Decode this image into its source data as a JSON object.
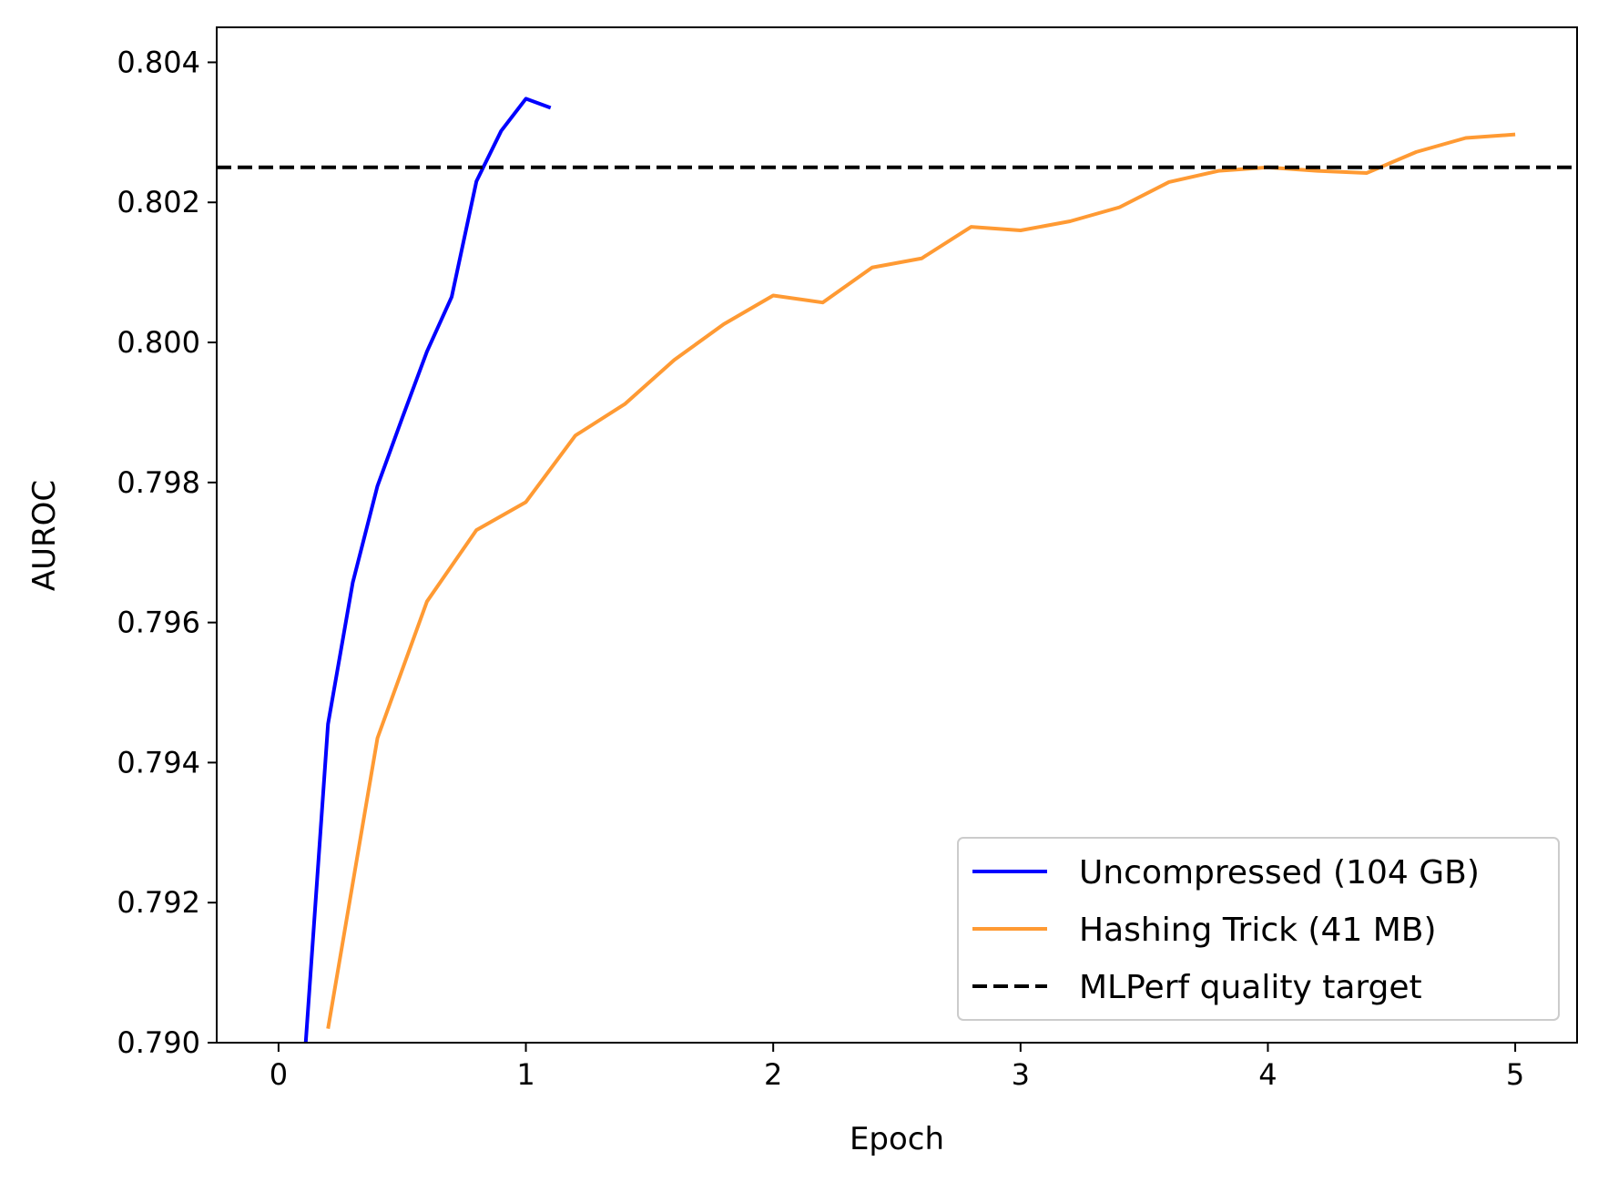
{
  "chart_data": {
    "type": "line",
    "title": "",
    "xlabel": "Epoch",
    "ylabel": "AUROC",
    "xlim": [
      -0.25,
      5.25
    ],
    "ylim": [
      0.79,
      0.8045
    ],
    "xticks": [
      0,
      1,
      2,
      3,
      4,
      5
    ],
    "xtick_labels": [
      "0",
      "1",
      "2",
      "3",
      "4",
      "5"
    ],
    "yticks": [
      0.79,
      0.792,
      0.794,
      0.796,
      0.798,
      0.8,
      0.802,
      0.804
    ],
    "ytick_labels": [
      "0.790",
      "0.792",
      "0.794",
      "0.796",
      "0.798",
      "0.800",
      "0.802",
      "0.804"
    ],
    "grid": false,
    "legend_position": "bottom-right",
    "series": [
      {
        "name": "Uncompressed (104 GB)",
        "color": "#0000ff",
        "style": "solid",
        "x": [
          0.1,
          0.2,
          0.3,
          0.4,
          0.5,
          0.6,
          0.7,
          0.8,
          0.9,
          1.0,
          1.1
        ],
        "y": [
          0.7895,
          0.79455,
          0.79657,
          0.79795,
          0.79892,
          0.79987,
          0.80065,
          0.8023,
          0.80302,
          0.80348,
          0.80335
        ]
      },
      {
        "name": "Hashing Trick (41 MB)",
        "color": "#ff9a33",
        "style": "solid",
        "x": [
          0.2,
          0.4,
          0.6,
          0.8,
          1.0,
          1.2,
          1.4,
          1.6,
          1.8,
          2.0,
          2.2,
          2.4,
          2.6,
          2.8,
          3.0,
          3.2,
          3.4,
          3.6,
          3.8,
          4.0,
          4.2,
          4.4,
          4.6,
          4.8,
          5.0
        ],
        "y": [
          0.7902,
          0.79435,
          0.7963,
          0.79732,
          0.79772,
          0.79867,
          0.79912,
          0.79975,
          0.80026,
          0.80067,
          0.80057,
          0.80107,
          0.8012,
          0.80165,
          0.8016,
          0.80173,
          0.80193,
          0.80229,
          0.80245,
          0.8025,
          0.80245,
          0.80242,
          0.80272,
          0.80292,
          0.80297
        ]
      },
      {
        "name": "MLPerf quality target",
        "color": "#000000",
        "style": "dashed",
        "x": [
          -0.25,
          5.25
        ],
        "y": [
          0.8025,
          0.8025
        ]
      }
    ]
  }
}
